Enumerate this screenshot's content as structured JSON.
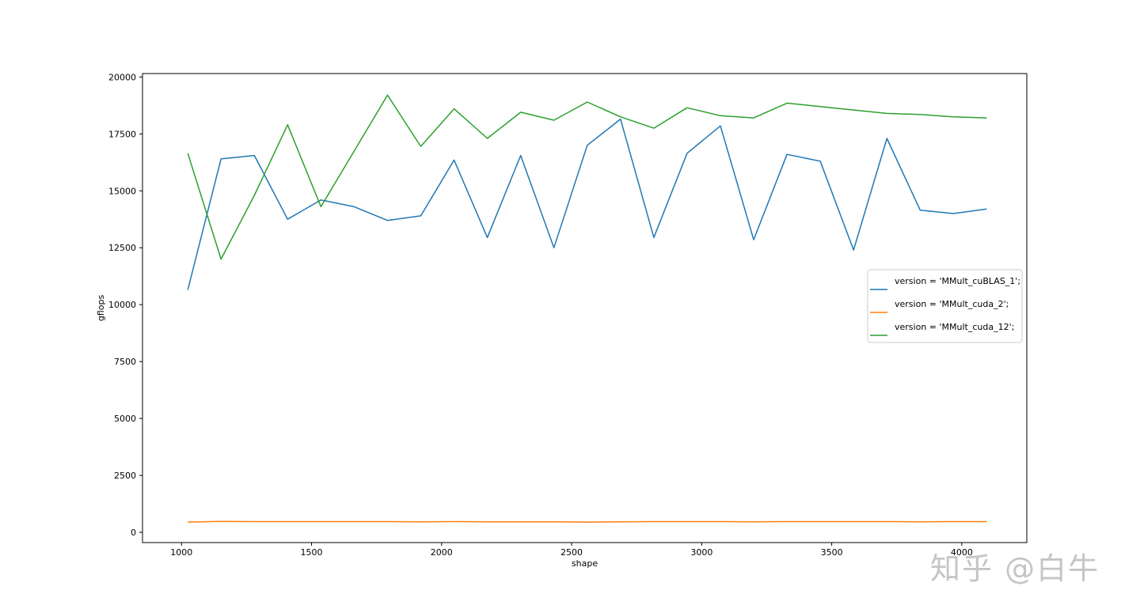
{
  "chart_data": {
    "type": "line",
    "xlabel": "shape",
    "ylabel": "gflops",
    "xlim": [
      850,
      4250
    ],
    "ylim": [
      -450,
      20150
    ],
    "xticks": [
      1000,
      1500,
      2000,
      2500,
      3000,
      3500,
      4000
    ],
    "yticks": [
      0,
      2500,
      5000,
      7500,
      10000,
      12500,
      15000,
      17500,
      20000
    ],
    "grid": false,
    "legend_position": "center-right",
    "x": [
      1024,
      1152,
      1280,
      1408,
      1536,
      1664,
      1792,
      1920,
      2048,
      2176,
      2304,
      2432,
      2560,
      2688,
      2816,
      2944,
      3072,
      3200,
      3328,
      3456,
      3584,
      3712,
      3840,
      3968,
      4096
    ],
    "series": [
      {
        "name": "version = 'MMult_cuBLAS_1';",
        "color": "#1f77b4",
        "values": [
          10650,
          16400,
          16550,
          13750,
          14600,
          14300,
          13700,
          13900,
          16350,
          12950,
          16550,
          12500,
          17000,
          18150,
          12950,
          16650,
          17850,
          12850,
          16600,
          16300,
          12400,
          17300,
          14150,
          14000,
          14200
        ]
      },
      {
        "name": "version = 'MMult_cuda_2';",
        "color": "#ff7f0e",
        "values": [
          450,
          480,
          470,
          470,
          470,
          470,
          470,
          460,
          470,
          460,
          460,
          460,
          450,
          460,
          470,
          470,
          470,
          460,
          470,
          470,
          470,
          470,
          460,
          470,
          470
        ]
      },
      {
        "name": "version = 'MMult_cuda_12';",
        "color": "#2ca02c",
        "values": [
          16650,
          12000,
          14800,
          17900,
          14300,
          16750,
          19200,
          16950,
          18600,
          17300,
          18450,
          18100,
          18900,
          18250,
          17750,
          18650,
          18300,
          18200,
          18850,
          18700,
          18550,
          18400,
          18350,
          18250,
          18200
        ]
      }
    ]
  },
  "watermark": "知乎 @白牛"
}
